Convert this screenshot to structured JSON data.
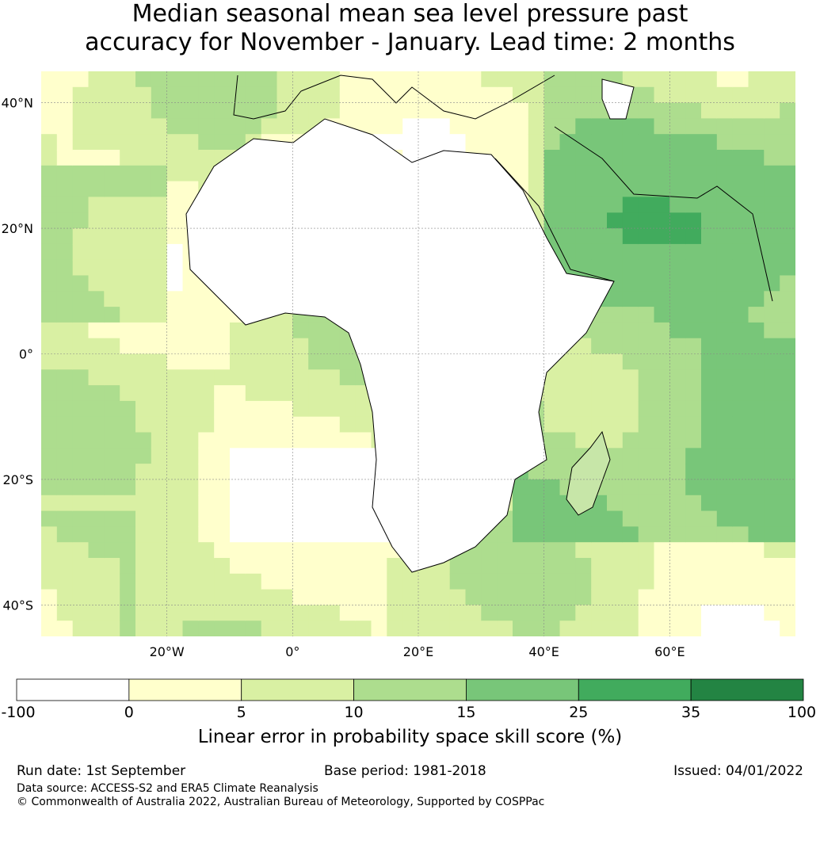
{
  "title": {
    "line1": "Median seasonal mean sea level pressure past",
    "line2": "accuracy for November - January. Lead time: 2 months"
  },
  "map": {
    "lat_labels": [
      "40°N",
      "20°N",
      "0°",
      "20°S",
      "40°S"
    ],
    "lat_values": [
      40,
      20,
      0,
      -20,
      -40
    ],
    "lon_labels": [
      "20°W",
      "0°",
      "20°E",
      "40°E",
      "60°E"
    ],
    "lon_values": [
      -20,
      0,
      20,
      40,
      60
    ],
    "extent": {
      "lon_min": -40,
      "lon_max": 80,
      "lat_min": -45,
      "lat_max": 45
    }
  },
  "colorbar": {
    "ticks": [
      "-100",
      "0",
      "5",
      "10",
      "15",
      "25",
      "35",
      "100"
    ],
    "colors": [
      "#ffffff",
      "#ffffcc",
      "#d9f0a3",
      "#addd8e",
      "#78c679",
      "#41ab5d",
      "#238443"
    ],
    "label": "Linear error in probability space skill score (%)"
  },
  "footer": {
    "run_date": "Run date: 1st September",
    "base_period": "Base period: 1981-2018",
    "issued": "Issued: 04/01/2022",
    "data_source": "Data source: ACCESS-S2 and ERA5 Climate Reanalysis",
    "copyright": "© Commonwealth of Australia 2022, Australian Bureau of Meteorology, Supported by COSPPac"
  }
}
